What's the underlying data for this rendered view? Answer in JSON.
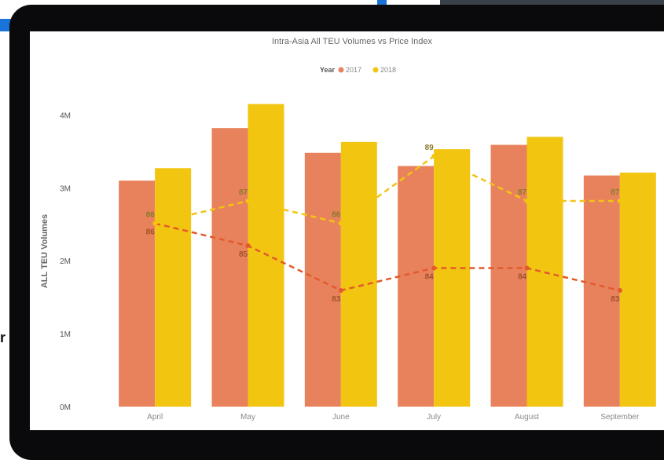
{
  "background": {
    "partial_letter": "r"
  },
  "chart_data": {
    "type": "bar",
    "title": "Intra-Asia All TEU Volumes vs Price Index",
    "legend": {
      "title": "Year",
      "placement": "top-center",
      "entries": [
        "2017",
        "2018"
      ]
    },
    "ylabel": "ALL TEU Volumes",
    "xlabel": "",
    "categories": [
      "April",
      "May",
      "June",
      "July",
      "August",
      "September"
    ],
    "y_ticks": [
      "0M",
      "1M",
      "2M",
      "3M",
      "4M"
    ],
    "ylim": [
      0,
      4500000
    ],
    "series": [
      {
        "name": "2017",
        "color": "#e8825c",
        "values": [
          3100000,
          3820000,
          3480000,
          3300000,
          3590000,
          3170000
        ]
      },
      {
        "name": "2018",
        "color": "#f2c511",
        "values": [
          3270000,
          4150000,
          3630000,
          3530000,
          3700000,
          3210000
        ]
      }
    ],
    "price_index": {
      "style": "dashed-line",
      "series": [
        {
          "name": "2017",
          "color": "#e35a2b",
          "values": [
            86,
            85,
            83,
            84,
            84,
            83
          ]
        },
        {
          "name": "2018",
          "color": "#f2c511",
          "values": [
            86,
            87,
            86,
            89,
            87,
            87
          ]
        }
      ],
      "range": [
        80,
        92
      ]
    },
    "grid": false
  }
}
